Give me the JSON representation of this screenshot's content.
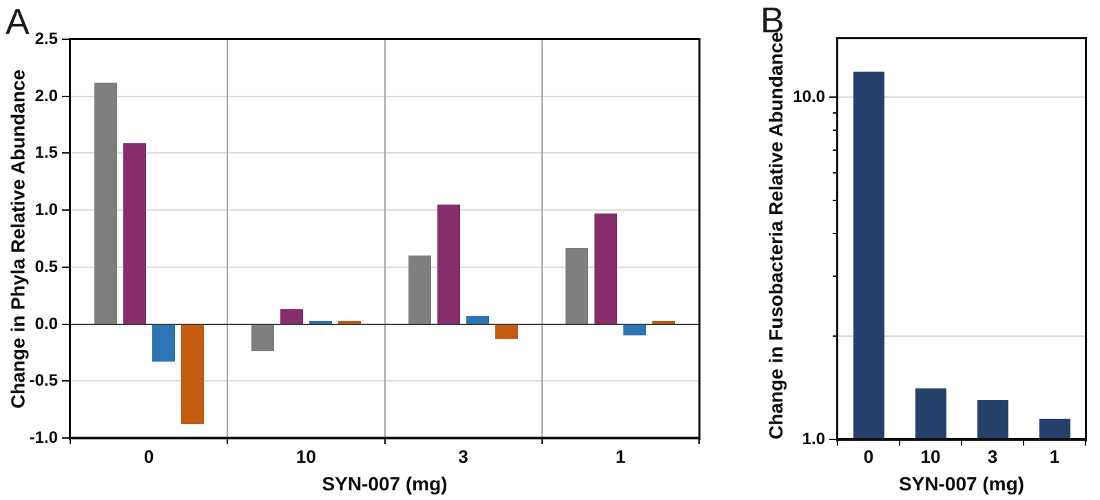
{
  "figure": {
    "background": "#FFFFFF"
  },
  "chart_data": [
    {
      "type": "bar",
      "panel_label": "A",
      "title": "",
      "xlabel": "SYN-007 (mg)",
      "ylabel": "Change in Phyla Relative Abundance",
      "categories": [
        "0",
        "10",
        "3",
        "1"
      ],
      "series": [
        {
          "name": "gray",
          "color": "#7F7F7F",
          "pattern": "speckled",
          "values": [
            2.12,
            -0.24,
            0.6,
            0.67
          ]
        },
        {
          "name": "purple",
          "color": "#862D6B",
          "pattern": "solid",
          "values": [
            1.59,
            0.13,
            1.05,
            0.97
          ]
        },
        {
          "name": "blue",
          "color": "#2E75B6",
          "pattern": "solid",
          "values": [
            -0.33,
            0.03,
            0.07,
            -0.1
          ]
        },
        {
          "name": "orange",
          "color": "#C55A11",
          "pattern": "solid",
          "values": [
            -0.88,
            0.03,
            -0.13,
            0.03
          ]
        }
      ],
      "ylim": [
        -1.0,
        2.5
      ],
      "ytick_values": [
        2.5,
        2.0,
        1.5,
        1.0,
        0.5,
        0.0,
        -0.5,
        -1.0
      ],
      "ytick_labels": [
        "2.5",
        "2.0",
        "1.5",
        "1.0",
        "0.5",
        "0.0",
        "-0.5",
        "-1.0"
      ],
      "grid": true,
      "legend": "none",
      "colors": {
        "h_gridline": "#DBDBDB",
        "v_gridline": "#A8A8A8",
        "zero_line": "#404040",
        "axis": "#0f0f0f"
      }
    },
    {
      "type": "bar",
      "panel_label": "B",
      "title": "",
      "yscale": "log",
      "xlabel": "SYN-007 (mg)",
      "ylabel": "Change in Fusobacteria Relative Abundance",
      "categories": [
        "0",
        "10",
        "3",
        "1"
      ],
      "series": [
        {
          "name": "navy",
          "color": "#24406B",
          "pattern": "solid",
          "values": [
            11.9,
            1.41,
            1.3,
            1.15
          ]
        }
      ],
      "ylim": [
        1.0,
        14.9
      ],
      "ytick_values": [
        10.0,
        1.0
      ],
      "ytick_labels": [
        "10.0",
        "1.0"
      ],
      "minor_tick_values": [
        2,
        3,
        4,
        5,
        6,
        7,
        8,
        9
      ],
      "gridline_values": [
        10.0,
        2.0
      ],
      "grid": true,
      "legend": "none",
      "colors": {
        "h_gridline": "#D9D9D9",
        "axis": "#0f0f0f"
      }
    }
  ]
}
